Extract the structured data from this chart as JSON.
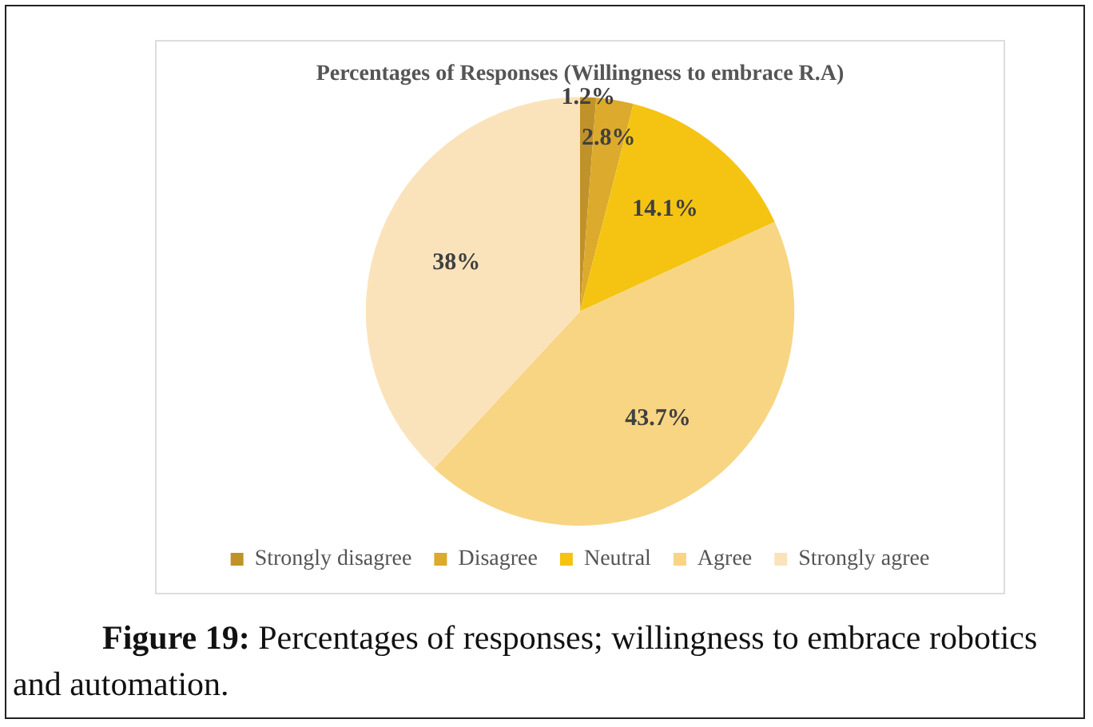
{
  "chart_data": {
    "type": "pie",
    "title": "Percentages of Responses (Willingness to embrace R.A)",
    "categories": [
      "Strongly disagree",
      "Disagree",
      "Neutral",
      "Agree",
      "Strongly agree"
    ],
    "values": [
      1.2,
      2.8,
      14.1,
      43.7,
      38
    ],
    "colors": [
      "#c0922a",
      "#dcaa2c",
      "#f5c412",
      "#f8d583",
      "#fae3bb"
    ],
    "value_labels": [
      "1.2%",
      "2.8%",
      "14.1%",
      "43.7%",
      "38%"
    ],
    "legend": "bottom",
    "annotations": [
      "Figure 19: Percentages of responses; willingness to embrace robotics and automation."
    ]
  }
}
